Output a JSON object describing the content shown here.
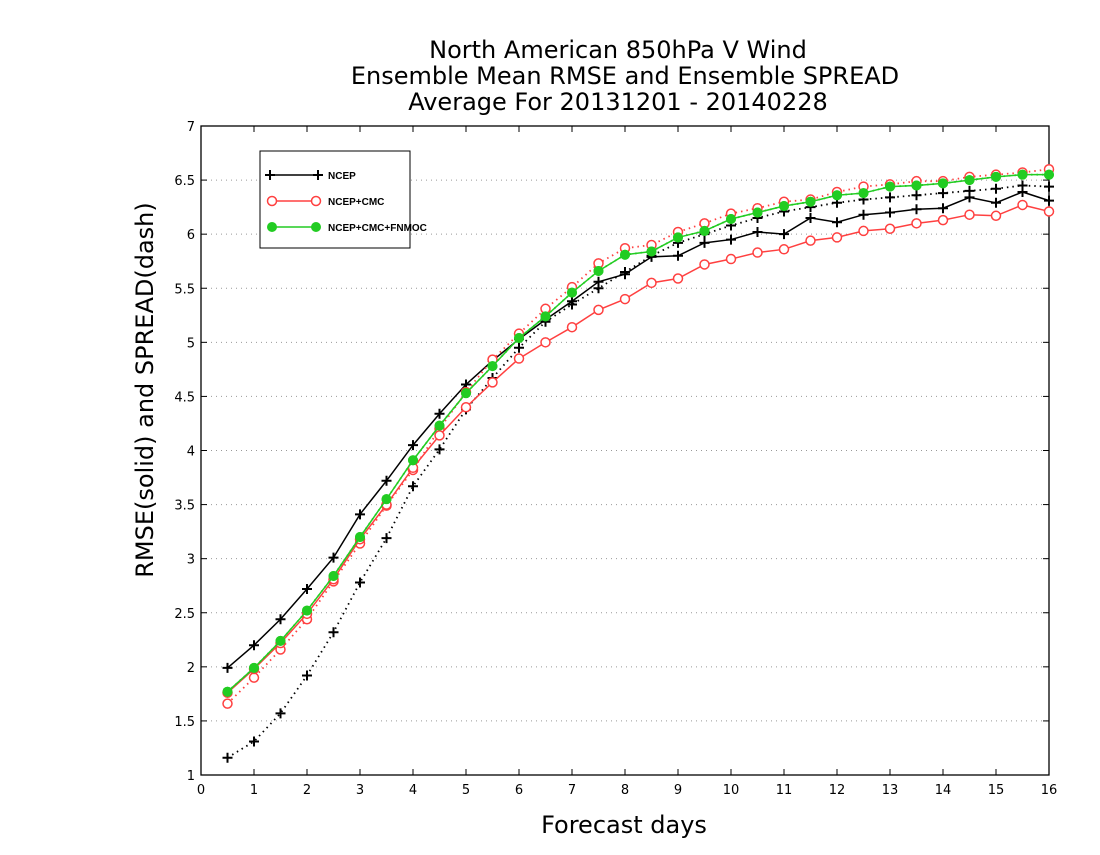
{
  "chart_data": {
    "type": "line",
    "title_lines": [
      "North American 850hPa V Wind",
      "Ensemble Mean RMSE and Ensemble SPREAD",
      "Average For 20131201 - 20140228"
    ],
    "xlabel": "Forecast days",
    "ylabel": "RMSE(solid) and SPREAD(dash)",
    "xlim": [
      0,
      16
    ],
    "ylim": [
      1,
      7
    ],
    "x_ticks": [
      "0",
      "1",
      "2",
      "3",
      "4",
      "5",
      "6",
      "7",
      "8",
      "9",
      "10",
      "11",
      "12",
      "13",
      "14",
      "15",
      "16"
    ],
    "y_ticks": [
      "1",
      "1.5",
      "2",
      "2.5",
      "3",
      "3.5",
      "4",
      "4.5",
      "5",
      "5.5",
      "6",
      "6.5",
      "7"
    ],
    "grid": "horizontal dotted",
    "legend_position": "top-left",
    "x": [
      0.5,
      1,
      1.5,
      2,
      2.5,
      3,
      3.5,
      4,
      4.5,
      5,
      5.5,
      6,
      6.5,
      7,
      7.5,
      8,
      8.5,
      9,
      9.5,
      10,
      10.5,
      11,
      11.5,
      12,
      12.5,
      13,
      13.5,
      14,
      14.5,
      15,
      15.5,
      16
    ],
    "series": [
      {
        "name": "NCEP",
        "color": "#000000",
        "marker": "plus",
        "rmse": [
          1.99,
          2.2,
          2.44,
          2.72,
          3.01,
          3.41,
          3.72,
          4.05,
          4.34,
          4.61,
          4.83,
          5.03,
          5.21,
          5.38,
          5.56,
          5.63,
          5.79,
          5.8,
          5.92,
          5.95,
          6.02,
          6.0,
          6.15,
          6.11,
          6.18,
          6.2,
          6.23,
          6.24,
          6.34,
          6.29,
          6.39,
          6.31
        ],
        "spread": [
          1.16,
          1.31,
          1.57,
          1.92,
          2.32,
          2.78,
          3.19,
          3.67,
          4.01,
          4.38,
          4.67,
          4.95,
          5.19,
          5.35,
          5.5,
          5.65,
          5.8,
          5.92,
          6.0,
          6.08,
          6.15,
          6.21,
          6.25,
          6.29,
          6.32,
          6.34,
          6.36,
          6.38,
          6.4,
          6.42,
          6.45,
          6.44
        ]
      },
      {
        "name": "NCEP+CMC",
        "color": "#ff4040",
        "marker": "open-circle",
        "rmse": [
          1.76,
          1.98,
          2.22,
          2.49,
          2.81,
          3.18,
          3.5,
          3.84,
          4.14,
          4.4,
          4.63,
          4.85,
          5.0,
          5.14,
          5.3,
          5.4,
          5.55,
          5.59,
          5.72,
          5.77,
          5.83,
          5.86,
          5.94,
          5.97,
          6.03,
          6.05,
          6.1,
          6.13,
          6.18,
          6.17,
          6.27,
          6.21
        ],
        "spread": [
          1.66,
          1.9,
          2.16,
          2.44,
          2.79,
          3.14,
          3.49,
          3.82,
          4.2,
          4.54,
          4.84,
          5.08,
          5.31,
          5.51,
          5.73,
          5.87,
          5.9,
          6.02,
          6.1,
          6.19,
          6.24,
          6.3,
          6.32,
          6.39,
          6.44,
          6.46,
          6.49,
          6.49,
          6.53,
          6.55,
          6.57,
          6.6
        ]
      },
      {
        "name": "NCEP+CMC+FNMOC",
        "color": "#22cc22",
        "marker": "filled-circle",
        "rmse": [
          1.77,
          1.99,
          2.24,
          2.52,
          2.84,
          3.2,
          3.55,
          3.91,
          4.23,
          4.53,
          4.78,
          5.04,
          5.24,
          5.46,
          5.66,
          5.81,
          5.84,
          5.97,
          6.03,
          6.14,
          6.2,
          6.26,
          6.3,
          6.36,
          6.38,
          6.44,
          6.45,
          6.47,
          6.5,
          6.53,
          6.55,
          6.55
        ],
        "spread": [
          1.77,
          1.99,
          2.24,
          2.52,
          2.84,
          3.2,
          3.55,
          3.91,
          4.23,
          4.53,
          4.78,
          5.04,
          5.24,
          5.46,
          5.66,
          5.81,
          5.84,
          5.97,
          6.03,
          6.14,
          6.2,
          6.26,
          6.3,
          6.36,
          6.38,
          6.44,
          6.45,
          6.47,
          6.5,
          6.53,
          6.55,
          6.55
        ]
      }
    ]
  }
}
